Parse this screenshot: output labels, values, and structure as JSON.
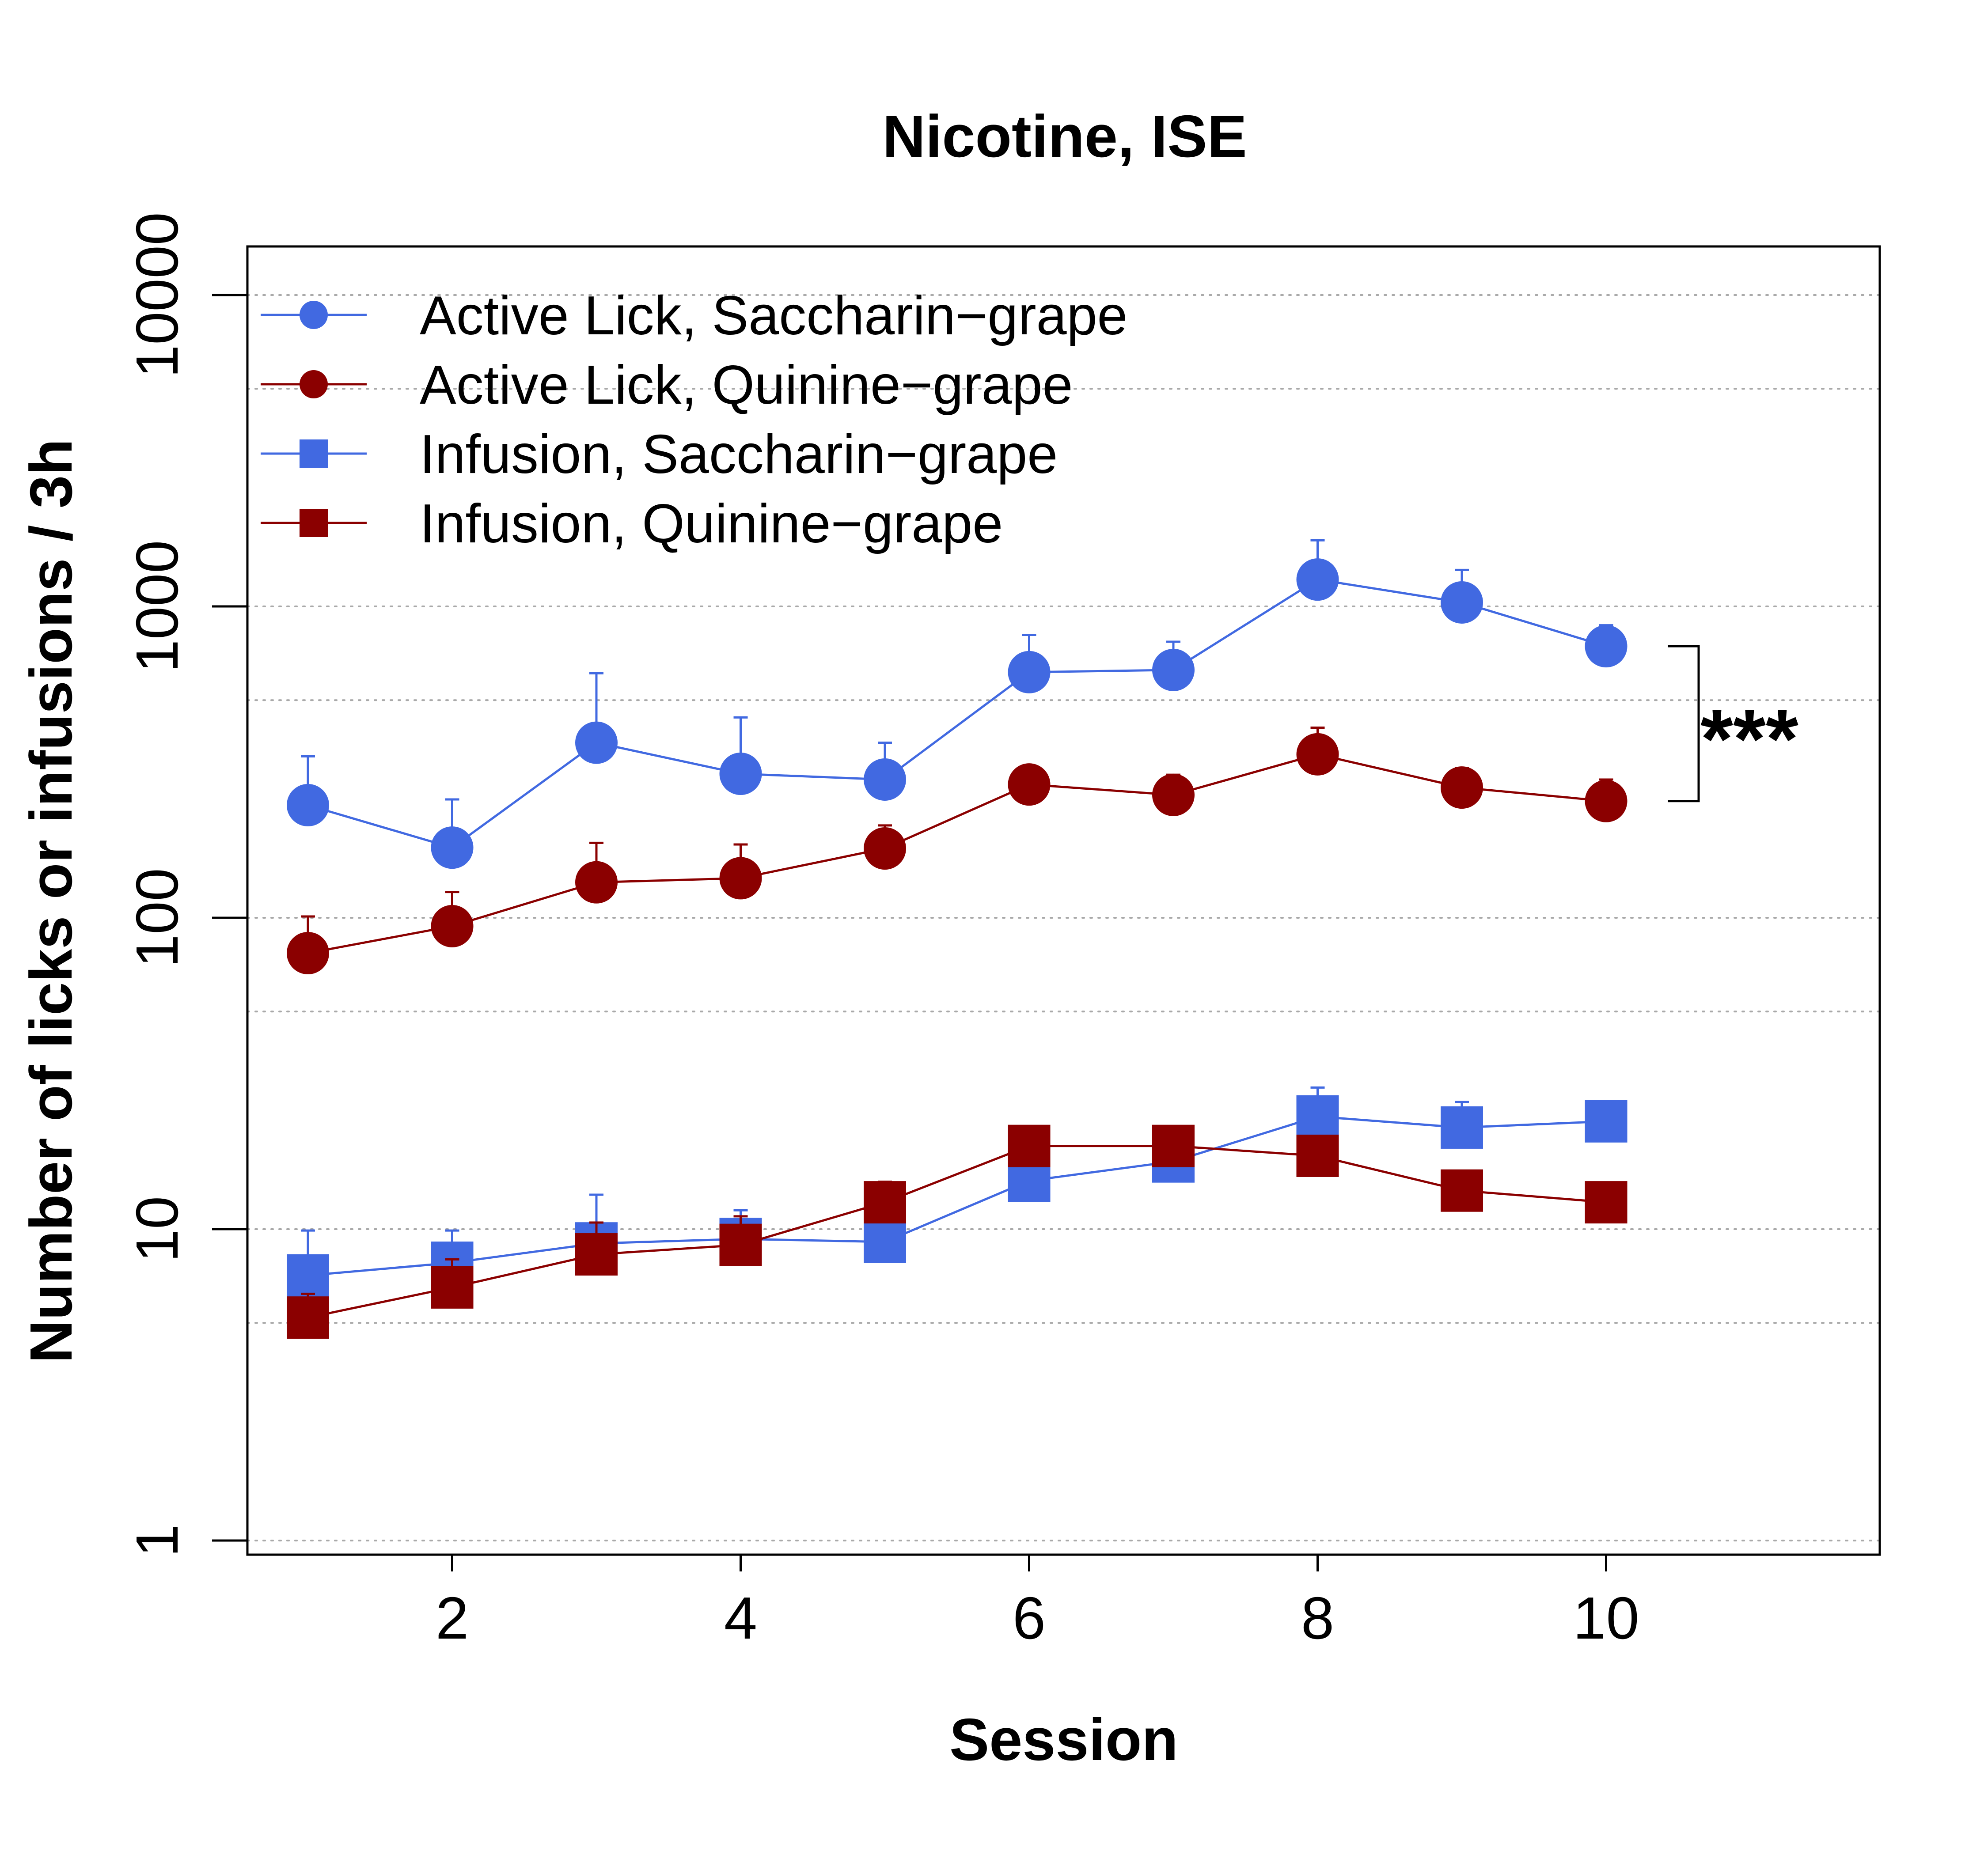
{
  "chart_data": {
    "type": "line",
    "title": "Nicotine, ISE",
    "xlabel": "Session",
    "ylabel": "Number of licks or infusions / 3h",
    "xlim": [
      0.5,
      11.5
    ],
    "ylim": [
      1,
      10000
    ],
    "y_scale": "log",
    "x_ticks": [
      2,
      4,
      6,
      8,
      10
    ],
    "x_tick_labels": [
      "2",
      "4",
      "6",
      "8",
      "10"
    ],
    "y_ticks": [
      1,
      10,
      100,
      1000,
      10000
    ],
    "y_tick_labels": [
      "1",
      "10",
      "100",
      "1000",
      "10000"
    ],
    "gridlines": [
      1,
      5,
      10,
      50,
      100,
      500,
      1000,
      5000,
      10000
    ],
    "grid": "horizontal dotted",
    "legend_position": "top-left",
    "x": [
      1,
      2,
      3,
      4,
      5,
      6,
      7,
      8,
      9,
      10
    ],
    "series": [
      {
        "name": "Active Lick, Saccharin−grape",
        "color": "#4169E1",
        "marker": "circle",
        "values": [
          230,
          168,
          365,
          290,
          278,
          615,
          625,
          1220,
          1030,
          745
        ],
        "error_upper": [
          330,
          240,
          610,
          440,
          365,
          810,
          770,
          1630,
          1310,
          870
        ]
      },
      {
        "name": "Active Lick, Quinine−grape",
        "color": "#8B0000",
        "marker": "circle",
        "values": [
          77,
          94,
          130,
          134,
          167,
          268,
          248,
          335,
          262,
          237
        ],
        "error_upper": [
          101,
          121,
          174,
          172,
          198,
          305,
          288,
          408,
          303,
          278
        ]
      },
      {
        "name": "Infusion, Saccharin−grape",
        "color": "#4169E1",
        "marker": "square",
        "values": [
          7.1,
          7.8,
          9.0,
          9.3,
          9.1,
          14.3,
          16.5,
          23.0,
          21.2,
          22.2
        ],
        "error_upper": [
          9.9,
          9.9,
          12.9,
          11.5,
          10.5,
          16.0,
          17.5,
          28.5,
          25.6,
          25.5
        ]
      },
      {
        "name": "Infusion, Quinine−grape",
        "color": "#8B0000",
        "marker": "square",
        "values": [
          5.2,
          6.5,
          8.3,
          8.9,
          12.2,
          18.5,
          18.5,
          17.2,
          13.3,
          12.2
        ],
        "error_upper": [
          6.2,
          8.0,
          10.5,
          11.0,
          14.2,
          20.0,
          19.5,
          19.0,
          14.8,
          13.5
        ]
      }
    ],
    "annotations": [
      {
        "text": "***",
        "bracket_from": 745,
        "bracket_to": 237
      }
    ]
  }
}
